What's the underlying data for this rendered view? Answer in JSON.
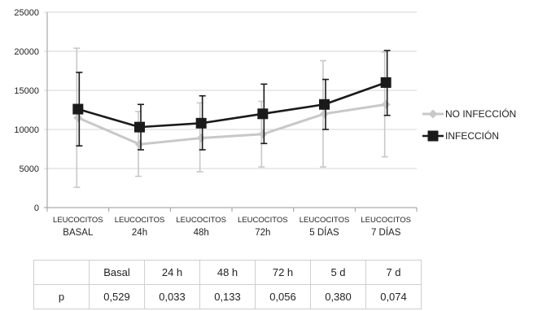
{
  "chart_data": {
    "type": "line",
    "categories": [
      [
        "LEUCOCITOS",
        "BASAL"
      ],
      [
        "LEUCOCITOS",
        "24h"
      ],
      [
        "LEUCOCITOS",
        "48h"
      ],
      [
        "LEUCOCITOS",
        "72h"
      ],
      [
        "LEUCOCITOS",
        "5 DÍAS"
      ],
      [
        "LEUCOCITOS",
        "7 DÍAS"
      ]
    ],
    "yticks": [
      "0",
      "5000",
      "10000",
      "15000",
      "20000",
      "25000"
    ],
    "ylim": [
      0,
      25000
    ],
    "grid": "horizontal",
    "legend_position": "right",
    "series": [
      {
        "name": "NO INFECCIÓN",
        "values": [
          11500,
          8100,
          8900,
          9400,
          12000,
          13200
        ],
        "error_low": [
          2600,
          4000,
          4600,
          5200,
          5200,
          6500
        ],
        "error_high": [
          20400,
          12300,
          13400,
          13600,
          18800,
          19900
        ],
        "color": "#c8c8c8",
        "marker": "diamond"
      },
      {
        "name": "INFECCIÓN",
        "values": [
          12600,
          10300,
          10800,
          12000,
          13200,
          16000
        ],
        "error_low": [
          7900,
          7400,
          7400,
          8200,
          10000,
          11800
        ],
        "error_high": [
          17300,
          13200,
          14300,
          15800,
          16400,
          20100
        ],
        "color": "#1a1a1a",
        "marker": "square"
      }
    ]
  },
  "table": {
    "header": [
      "",
      "Basal",
      "24 h",
      "48 h",
      "72 h",
      "5 d",
      "7 d"
    ],
    "rows": [
      [
        "p",
        "0,529",
        "0,033",
        "0,133",
        "0,056",
        "0,380",
        "0,074"
      ]
    ]
  }
}
